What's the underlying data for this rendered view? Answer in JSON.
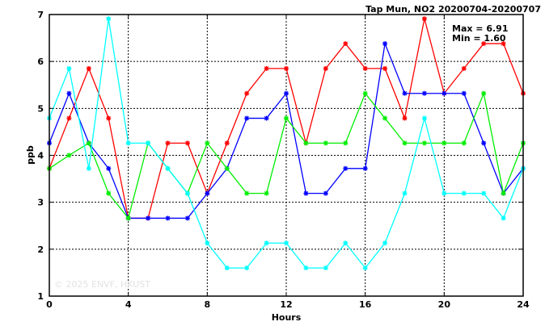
{
  "chart_data": {
    "type": "line",
    "title": "Tap Mun, NO2 20200704-20200707",
    "xlabel": "Hours",
    "ylabel": "ppb",
    "xlim": [
      0,
      24
    ],
    "ylim": [
      1,
      7
    ],
    "x_ticks": [
      0,
      4,
      8,
      12,
      16,
      20,
      24
    ],
    "y_ticks": [
      1,
      2,
      3,
      4,
      5,
      6,
      7
    ],
    "grid": true,
    "stats": {
      "max": "Max = 6.91",
      "min": "Min = 1.60"
    },
    "watermark": "© 2025 ENVF, HKUST",
    "x": [
      0,
      1,
      2,
      3,
      4,
      5,
      6,
      7,
      8,
      9,
      10,
      11,
      12,
      13,
      14,
      15,
      16,
      17,
      18,
      19,
      20,
      21,
      22,
      23,
      24
    ],
    "series": [
      {
        "color": "#ff0000",
        "values": [
          3.72,
          4.79,
          5.85,
          4.79,
          2.66,
          2.66,
          4.26,
          4.26,
          3.19,
          4.26,
          5.32,
          5.85,
          5.85,
          4.26,
          5.85,
          6.38,
          5.85,
          5.85,
          4.79,
          6.91,
          5.32,
          5.85,
          6.38,
          6.38,
          5.32
        ]
      },
      {
        "color": "#0000ff",
        "values": [
          4.26,
          5.32,
          4.26,
          3.72,
          2.66,
          2.66,
          2.66,
          2.66,
          3.19,
          3.72,
          4.79,
          4.79,
          5.32,
          3.19,
          3.19,
          3.72,
          3.72,
          6.38,
          5.32,
          5.32,
          5.32,
          5.32,
          4.26,
          3.19,
          3.72
        ]
      },
      {
        "color": "#00ee00",
        "values": [
          3.72,
          4.0,
          4.26,
          3.19,
          2.66,
          4.26,
          3.72,
          3.19,
          4.26,
          3.72,
          3.19,
          3.19,
          4.79,
          4.26,
          4.26,
          4.26,
          5.32,
          4.79,
          4.26,
          4.26,
          4.26,
          4.26,
          5.32,
          3.19,
          4.26
        ]
      },
      {
        "color": "#00ffff",
        "values": [
          4.79,
          5.85,
          3.72,
          6.91,
          4.26,
          4.26,
          3.72,
          3.19,
          2.13,
          1.6,
          1.6,
          2.13,
          2.13,
          1.6,
          1.6,
          2.13,
          1.6,
          2.13,
          3.19,
          4.79,
          3.19,
          3.19,
          3.19,
          2.66,
          3.72
        ]
      }
    ]
  }
}
